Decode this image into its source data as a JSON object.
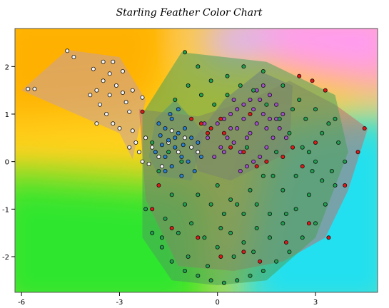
{
  "chart_data": {
    "type": "scatter",
    "title": "Starling Feather Color Chart",
    "xlabel": "",
    "ylabel": "",
    "xlim": [
      -6.2,
      4.9
    ],
    "ylim": [
      -2.75,
      2.8
    ],
    "xticks": [
      -6,
      -3,
      0,
      3
    ],
    "yticks": [
      -2,
      -1,
      0,
      1,
      2
    ],
    "grid": false,
    "background_colors": {
      "orange": "#ffb000",
      "yellow": "#ffd21e",
      "green": "#2ee62e",
      "cyan": "#22e0f0",
      "pink": "#ff9cf0",
      "lavender": "#d8b4ff"
    },
    "series": [
      {
        "color": "#f4f4f4",
        "hull_fill": "#c8a0a0",
        "hull": [
          [
            -6.0,
            1.5
          ],
          [
            -4.6,
            2.35
          ],
          [
            -3.0,
            2.2
          ],
          [
            -2.2,
            1.3
          ],
          [
            -2.6,
            0.05
          ],
          [
            -3.0,
            0.6
          ]
        ],
        "points": [
          [
            -5.8,
            1.53
          ],
          [
            -5.6,
            1.53
          ],
          [
            -4.6,
            2.33
          ],
          [
            -4.4,
            2.2
          ],
          [
            -3.8,
            1.95
          ],
          [
            -3.7,
            1.5
          ],
          [
            -3.5,
            2.1
          ],
          [
            -3.3,
            1.85
          ],
          [
            -3.1,
            1.6
          ],
          [
            -2.9,
            1.45
          ],
          [
            -3.6,
            1.2
          ],
          [
            -3.4,
            1.0
          ],
          [
            -3.2,
            0.8
          ],
          [
            -2.8,
            1.25
          ],
          [
            -2.7,
            1.05
          ],
          [
            -2.6,
            0.65
          ],
          [
            -2.5,
            0.4
          ],
          [
            -2.4,
            0.2
          ],
          [
            -2.7,
            0.3
          ],
          [
            -3.0,
            0.7
          ],
          [
            -3.7,
            0.8
          ],
          [
            -3.9,
            1.4
          ],
          [
            -3.5,
            1.7
          ],
          [
            -3.2,
            2.1
          ],
          [
            -2.6,
            1.5
          ],
          [
            -2.3,
            1.35
          ],
          [
            -2.9,
            1.9
          ],
          [
            -3.3,
            1.4
          ],
          [
            -2.2,
            0.5
          ],
          [
            -2.0,
            0.3
          ],
          [
            -1.8,
            0.1
          ],
          [
            -2.3,
            0.0
          ],
          [
            -1.5,
            0.4
          ],
          [
            -1.2,
            0.2
          ],
          [
            -1.0,
            0.5
          ],
          [
            -0.8,
            0.3
          ],
          [
            -1.7,
            -0.1
          ],
          [
            -1.4,
            0.65
          ],
          [
            -0.6,
            0.2
          ],
          [
            -2.1,
            -0.05
          ]
        ]
      },
      {
        "color": "#2a7fd0",
        "hull_fill": "#5a8ab0",
        "hull": [
          [
            -2.1,
            0.1
          ],
          [
            -1.9,
            0.9
          ],
          [
            -1.3,
            1.3
          ],
          [
            -0.4,
            0.6
          ],
          [
            -0.8,
            -0.4
          ],
          [
            -1.8,
            -0.3
          ]
        ],
        "points": [
          [
            -1.8,
            0.8
          ],
          [
            -1.6,
            0.7
          ],
          [
            -1.4,
            0.9
          ],
          [
            -1.2,
            0.6
          ],
          [
            -1.5,
            0.45
          ],
          [
            -1.7,
            0.35
          ],
          [
            -1.3,
            0.3
          ],
          [
            -1.1,
            0.1
          ],
          [
            -0.9,
            0.0
          ],
          [
            -1.4,
            -0.1
          ],
          [
            -1.6,
            0.1
          ],
          [
            -1.9,
            0.2
          ],
          [
            -1.0,
            0.7
          ],
          [
            -0.8,
            0.5
          ],
          [
            -0.6,
            0.4
          ],
          [
            -1.2,
            1.1
          ],
          [
            -1.45,
            1.0
          ],
          [
            -0.7,
            -0.2
          ],
          [
            -1.1,
            -0.3
          ],
          [
            -1.6,
            -0.2
          ],
          [
            -1.3,
            0.5
          ],
          [
            -0.5,
            0.1
          ],
          [
            -1.75,
            0.55
          ],
          [
            -1.05,
            0.35
          ]
        ]
      },
      {
        "color": "#a050c8",
        "hull_fill": "#9a5aa8",
        "hull": [
          [
            -0.8,
            0.4
          ],
          [
            0.2,
            1.3
          ],
          [
            1.3,
            1.9
          ],
          [
            2.3,
            1.6
          ],
          [
            2.2,
            0.2
          ],
          [
            0.4,
            -0.4
          ],
          [
            -0.6,
            -0.2
          ]
        ],
        "points": [
          [
            0.0,
            0.8
          ],
          [
            0.2,
            0.9
          ],
          [
            0.4,
            1.0
          ],
          [
            0.6,
            1.1
          ],
          [
            0.8,
            1.2
          ],
          [
            1.0,
            1.3
          ],
          [
            1.2,
            1.5
          ],
          [
            1.4,
            1.6
          ],
          [
            1.6,
            1.4
          ],
          [
            1.8,
            1.2
          ],
          [
            2.0,
            1.0
          ],
          [
            1.9,
            0.7
          ],
          [
            1.7,
            0.5
          ],
          [
            1.5,
            0.3
          ],
          [
            1.3,
            0.1
          ],
          [
            1.1,
            0.0
          ],
          [
            0.9,
            -0.1
          ],
          [
            0.7,
            0.2
          ],
          [
            0.5,
            0.4
          ],
          [
            0.3,
            0.5
          ],
          [
            0.1,
            0.3
          ],
          [
            -0.1,
            0.1
          ],
          [
            -0.3,
            0.5
          ],
          [
            0.6,
            0.7
          ],
          [
            0.8,
            0.9
          ],
          [
            1.0,
            0.6
          ],
          [
            1.2,
            0.8
          ],
          [
            1.4,
            1.0
          ],
          [
            1.6,
            0.9
          ],
          [
            1.1,
            1.1
          ],
          [
            0.9,
            0.5
          ],
          [
            0.4,
            0.7
          ],
          [
            0.2,
            0.2
          ],
          [
            0.7,
            -0.2
          ],
          [
            1.5,
            0.7
          ],
          [
            1.8,
            0.9
          ],
          [
            2.1,
            0.5
          ],
          [
            1.3,
            1.3
          ],
          [
            0.5,
            1.3
          ],
          [
            -0.4,
            0.8
          ]
        ]
      },
      {
        "color": "#e01818",
        "hull_fill": "#c07070",
        "hull": [
          [
            -2.4,
            1.1
          ],
          [
            -0.6,
            0.95
          ],
          [
            1.0,
            1.3
          ],
          [
            2.2,
            1.7
          ],
          [
            3.6,
            1.2
          ],
          [
            4.6,
            0.7
          ],
          [
            4.0,
            -0.6
          ],
          [
            3.3,
            -1.6
          ],
          [
            2.0,
            -2.1
          ],
          [
            0.5,
            -2.3
          ],
          [
            -1.2,
            -2.2
          ],
          [
            -2.2,
            -0.8
          ]
        ],
        "points": [
          [
            -2.3,
            1.05
          ],
          [
            -0.8,
            0.9
          ],
          [
            -0.5,
            0.8
          ],
          [
            -0.2,
            0.7
          ],
          [
            0.1,
            0.9
          ],
          [
            -0.3,
            0.6
          ],
          [
            0.4,
            0.3
          ],
          [
            0.8,
            0.2
          ],
          [
            1.2,
            -0.1
          ],
          [
            1.5,
            0.0
          ],
          [
            2.0,
            0.1
          ],
          [
            2.3,
            0.3
          ],
          [
            2.6,
            -0.1
          ],
          [
            3.0,
            0.4
          ],
          [
            4.5,
            0.7
          ],
          [
            4.3,
            0.2
          ],
          [
            3.9,
            -0.5
          ],
          [
            3.4,
            -1.6
          ],
          [
            2.8,
            -1.3
          ],
          [
            2.1,
            -1.7
          ],
          [
            1.3,
            -2.1
          ],
          [
            0.8,
            -1.9
          ],
          [
            0.1,
            -2.0
          ],
          [
            -0.6,
            -1.6
          ],
          [
            -1.4,
            -1.4
          ],
          [
            -2.0,
            -1.0
          ],
          [
            -1.8,
            -0.5
          ],
          [
            2.5,
            1.8
          ],
          [
            2.9,
            1.7
          ],
          [
            3.3,
            1.5
          ],
          [
            1.0,
            1.0
          ],
          [
            0.2,
            0.6
          ]
        ]
      },
      {
        "color": "#20a050",
        "hull_fill": "#4aa05a",
        "hull": [
          [
            -2.3,
            1.0
          ],
          [
            -1.1,
            2.3
          ],
          [
            1.5,
            2.1
          ],
          [
            3.6,
            1.4
          ],
          [
            4.0,
            0.2
          ],
          [
            3.0,
            -1.6
          ],
          [
            1.5,
            -2.5
          ],
          [
            0.0,
            -2.6
          ],
          [
            -1.4,
            -2.5
          ],
          [
            -2.3,
            -1.6
          ]
        ],
        "points": [
          [
            -1.0,
            2.3
          ],
          [
            -0.6,
            2.0
          ],
          [
            -0.2,
            1.7
          ],
          [
            0.3,
            1.8
          ],
          [
            0.8,
            2.0
          ],
          [
            1.4,
            1.9
          ],
          [
            2.0,
            1.6
          ],
          [
            2.5,
            1.3
          ],
          [
            3.0,
            1.1
          ],
          [
            3.4,
            0.8
          ],
          [
            3.7,
            0.4
          ],
          [
            3.9,
            0.0
          ],
          [
            3.6,
            -0.5
          ],
          [
            3.3,
            -0.9
          ],
          [
            3.0,
            -1.3
          ],
          [
            2.6,
            -1.6
          ],
          [
            2.2,
            -1.9
          ],
          [
            1.8,
            -2.1
          ],
          [
            1.4,
            -2.3
          ],
          [
            1.0,
            -2.4
          ],
          [
            0.6,
            -2.5
          ],
          [
            0.2,
            -2.55
          ],
          [
            -0.2,
            -2.5
          ],
          [
            -0.6,
            -2.4
          ],
          [
            -1.0,
            -2.3
          ],
          [
            -1.4,
            -2.1
          ],
          [
            -1.7,
            -1.8
          ],
          [
            -2.0,
            -1.5
          ],
          [
            -2.2,
            -1.0
          ],
          [
            -1.6,
            -1.2
          ],
          [
            -1.2,
            -1.5
          ],
          [
            -0.8,
            -1.3
          ],
          [
            -0.4,
            -1.6
          ],
          [
            0.0,
            -1.8
          ],
          [
            0.4,
            -1.5
          ],
          [
            0.8,
            -1.7
          ],
          [
            1.2,
            -1.4
          ],
          [
            1.6,
            -1.6
          ],
          [
            2.0,
            -1.3
          ],
          [
            2.4,
            -1.0
          ],
          [
            2.8,
            -0.7
          ],
          [
            3.2,
            -0.4
          ],
          [
            3.0,
            0.0
          ],
          [
            2.6,
            0.3
          ],
          [
            2.2,
            0.6
          ],
          [
            1.8,
            0.2
          ],
          [
            1.4,
            -0.3
          ],
          [
            1.0,
            -0.6
          ],
          [
            0.6,
            -0.9
          ],
          [
            0.2,
            -1.1
          ],
          [
            -0.2,
            -0.9
          ],
          [
            -0.6,
            -0.7
          ],
          [
            -1.0,
            -0.9
          ],
          [
            -1.4,
            -0.7
          ],
          [
            -1.8,
            -0.2
          ],
          [
            -2.0,
            0.4
          ],
          [
            -1.5,
            0.2
          ],
          [
            -1.1,
            0.0
          ],
          [
            0.0,
            -0.5
          ],
          [
            0.4,
            -0.8
          ],
          [
            0.8,
            -1.1
          ],
          [
            1.2,
            -0.9
          ],
          [
            1.6,
            -1.1
          ],
          [
            2.0,
            -0.6
          ],
          [
            2.4,
            -0.3
          ],
          [
            2.8,
            0.2
          ],
          [
            3.2,
            0.6
          ],
          [
            2.7,
            0.9
          ],
          [
            2.3,
            1.1
          ],
          [
            1.9,
            0.9
          ],
          [
            1.5,
            1.2
          ],
          [
            1.1,
            1.5
          ],
          [
            0.7,
            1.6
          ],
          [
            0.3,
            1.4
          ],
          [
            -0.1,
            1.2
          ],
          [
            -0.5,
            1.4
          ],
          [
            -0.9,
            1.6
          ],
          [
            -1.3,
            1.3
          ],
          [
            0.5,
            -2.0
          ],
          [
            -0.3,
            -2.2
          ],
          [
            1.1,
            -1.9
          ],
          [
            1.7,
            -0.3
          ],
          [
            3.5,
            -0.2
          ],
          [
            -1.7,
            -1.6
          ],
          [
            -0.9,
            -2.0
          ],
          [
            0.1,
            -1.4
          ],
          [
            2.1,
            -1.1
          ],
          [
            2.9,
            -0.2
          ],
          [
            3.6,
            0.9
          ],
          [
            0.9,
            0.3
          ]
        ]
      }
    ]
  }
}
